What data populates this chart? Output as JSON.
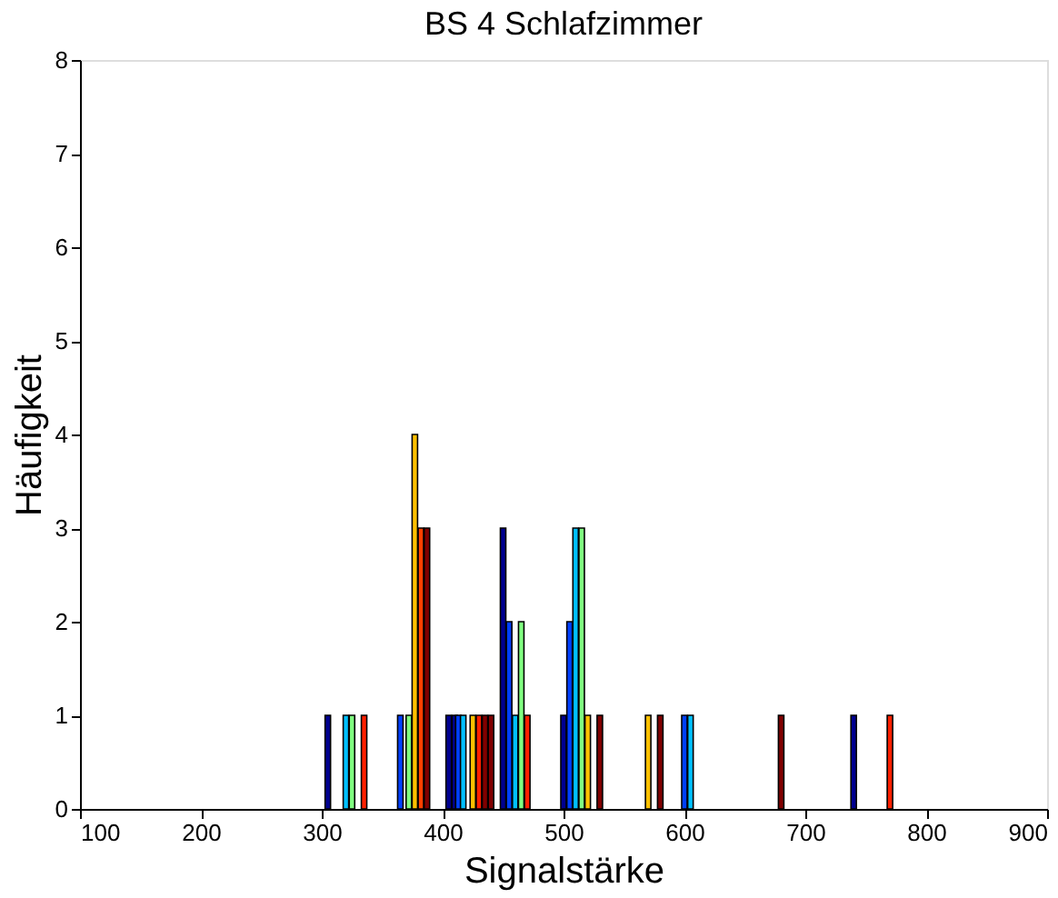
{
  "chart_data": {
    "type": "bar",
    "title": "BS 4 Schlafzimmer",
    "xlabel": "Signalstärke",
    "ylabel": "Häufigkeit",
    "xlim": [
      100,
      900
    ],
    "xticks": [
      100,
      200,
      300,
      400,
      500,
      600,
      700,
      800,
      900
    ],
    "ylim": [
      0,
      8
    ],
    "yticks": [
      0,
      1,
      2,
      3,
      4,
      5,
      6,
      7,
      8
    ],
    "grid": false,
    "series": [
      {
        "x": [
          305,
          320,
          325,
          335,
          365,
          372,
          377,
          382,
          387,
          405,
          410,
          413,
          417,
          425,
          430,
          435,
          440,
          450,
          455,
          460,
          465,
          470,
          500,
          505,
          510,
          515,
          520,
          530,
          570,
          580,
          600,
          605,
          680,
          740,
          770
        ],
        "values": [
          1,
          1,
          1,
          1,
          1,
          1,
          4,
          3,
          3,
          1,
          1,
          1,
          1,
          1,
          1,
          1,
          1,
          3,
          2,
          1,
          2,
          1,
          1,
          2,
          3,
          3,
          1,
          1,
          1,
          1,
          1,
          1,
          1,
          1,
          1
        ],
        "colors": [
          "#00008f",
          "#00c0ff",
          "#80ff80",
          "#ff2000",
          "#0040ff",
          "#80ff80",
          "#ffc000",
          "#ff4000",
          "#800000",
          "#00008f",
          "#00008f",
          "#0040ff",
          "#00c0ff",
          "#ffc000",
          "#ff2000",
          "#800000",
          "#800000",
          "#00008f",
          "#0040ff",
          "#00c0ff",
          "#80ff80",
          "#ff2000",
          "#00008f",
          "#0040ff",
          "#00c0ff",
          "#80ff80",
          "#ffc000",
          "#800000",
          "#ffc000",
          "#800000",
          "#0040ff",
          "#00c0ff",
          "#800000",
          "#00008f",
          "#ff2000"
        ]
      }
    ]
  }
}
